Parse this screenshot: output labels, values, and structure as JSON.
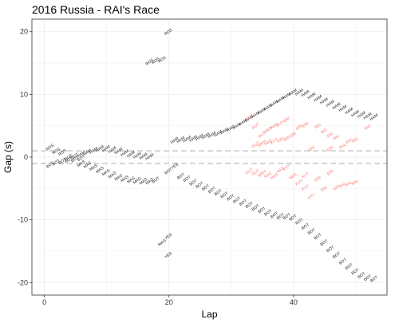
{
  "chart_data": {
    "type": "scatter",
    "title": "2016 Russia - RAI's Race",
    "xlabel": "Lap",
    "ylabel": "Gap (s)",
    "xlim": [
      -2,
      55
    ],
    "ylim": [
      -22,
      22
    ],
    "x_ticks": [
      0,
      20,
      40
    ],
    "y_ticks": [
      -20,
      -10,
      0,
      10,
      20
    ],
    "grid": true,
    "legend": "none",
    "reference_lines": [
      1,
      -1
    ],
    "colors": {
      "normal": "#222222",
      "highlight": "#f8766d",
      "refline": "#bdbdbd",
      "grid": "#ebebeb",
      "border": "#333333"
    },
    "series": [
      {
        "name": "",
        "points": [
          {
            "x": 1,
            "y": 1.4,
            "label": "ROS"
          },
          {
            "x": 2,
            "y": 0.8,
            "label": "ROS"
          },
          {
            "x": 3,
            "y": 0.6,
            "label": "ROS"
          },
          {
            "x": 1,
            "y": -1.4,
            "label": "BOT"
          },
          {
            "x": 2,
            "y": -1.0,
            "label": "BOT"
          },
          {
            "x": 3,
            "y": -0.8,
            "label": "BOT"
          },
          {
            "x": 4,
            "y": -0.6,
            "label": "BOT"
          },
          {
            "x": 5,
            "y": -0.5,
            "label": "BOT"
          },
          {
            "x": 6,
            "y": -0.3,
            "label": "BOT"
          },
          {
            "x": 4,
            "y": -0.2,
            "label": "ROS"
          },
          {
            "x": 5,
            "y": 0.0,
            "label": "BOT"
          },
          {
            "x": 6,
            "y": 0.3,
            "label": "HAM"
          },
          {
            "x": 7,
            "y": 0.6,
            "label": "HAM"
          },
          {
            "x": 8,
            "y": 0.9,
            "label": "HAM"
          },
          {
            "x": 9,
            "y": 1.2,
            "label": "HAM"
          },
          {
            "x": 10,
            "y": 1.2,
            "label": "HAM"
          },
          {
            "x": 11,
            "y": 1.0,
            "label": "HAM"
          },
          {
            "x": 12,
            "y": 0.8,
            "label": "HAM"
          },
          {
            "x": 13,
            "y": 0.5,
            "label": "HAM"
          },
          {
            "x": 14,
            "y": 0.3,
            "label": "HAM"
          },
          {
            "x": 15,
            "y": 0.1,
            "label": "HAM"
          },
          {
            "x": 16,
            "y": 0.0,
            "label": "HAM"
          },
          {
            "x": 17,
            "y": -0.1,
            "label": "HAM"
          },
          {
            "x": 6,
            "y": -1.2,
            "label": "MAS"
          },
          {
            "x": 7,
            "y": -1.4,
            "label": "MAS"
          },
          {
            "x": 8,
            "y": -1.8,
            "label": "MAS"
          },
          {
            "x": 9,
            "y": -2.2,
            "label": "MAS"
          },
          {
            "x": 10,
            "y": -2.6,
            "label": "MAS"
          },
          {
            "x": 11,
            "y": -3.0,
            "label": "MAS"
          },
          {
            "x": 12,
            "y": -3.4,
            "label": "MAS"
          },
          {
            "x": 13,
            "y": -3.6,
            "label": "MAS"
          },
          {
            "x": 14,
            "y": -3.8,
            "label": "MAS"
          },
          {
            "x": 15,
            "y": -3.9,
            "label": "MAS"
          },
          {
            "x": 16,
            "y": -4.0,
            "label": "MAS"
          },
          {
            "x": 17,
            "y": -4.0,
            "label": "MAS"
          },
          {
            "x": 18,
            "y": -3.8,
            "label": "BOT"
          },
          {
            "x": 17,
            "y": 15.0,
            "label": "ROS"
          },
          {
            "x": 18,
            "y": 15.2,
            "label": "ROS"
          },
          {
            "x": 19,
            "y": 15.4,
            "label": "ROS"
          },
          {
            "x": 20,
            "y": 19.8,
            "label": "ROS"
          },
          {
            "x": 21,
            "y": 2.5,
            "label": "HAM"
          },
          {
            "x": 22,
            "y": 2.6,
            "label": "HAM"
          },
          {
            "x": 23,
            "y": 2.7,
            "label": "HAM"
          },
          {
            "x": 24,
            "y": 2.8,
            "label": "HAM"
          },
          {
            "x": 25,
            "y": 3.0,
            "label": "HAM"
          },
          {
            "x": 26,
            "y": 3.2,
            "label": "HAM"
          },
          {
            "x": 27,
            "y": 3.4,
            "label": "HAM"
          },
          {
            "x": 28,
            "y": 3.6,
            "label": "HAM"
          },
          {
            "x": 29,
            "y": 4.0,
            "label": "HAM"
          },
          {
            "x": 30,
            "y": 4.4,
            "label": "HAM"
          },
          {
            "x": 31,
            "y": 4.8,
            "label": "HAM"
          },
          {
            "x": 32,
            "y": 5.4,
            "label": "HAM"
          },
          {
            "x": 33,
            "y": 6.0,
            "label": "HAM"
          },
          {
            "x": 34,
            "y": 6.6,
            "label": "HAM"
          },
          {
            "x": 35,
            "y": 7.2,
            "label": "HAM"
          },
          {
            "x": 36,
            "y": 7.8,
            "label": "HAM"
          },
          {
            "x": 37,
            "y": 8.4,
            "label": "HAM"
          },
          {
            "x": 38,
            "y": 9.0,
            "label": "HAM"
          },
          {
            "x": 39,
            "y": 9.6,
            "label": "HAM"
          },
          {
            "x": 40,
            "y": 10.2,
            "label": "HAM"
          },
          {
            "x": 41,
            "y": 10.2,
            "label": "HAM"
          },
          {
            "x": 42,
            "y": 10.0,
            "label": "HAM"
          },
          {
            "x": 43,
            "y": 9.6,
            "label": "HAM"
          },
          {
            "x": 44,
            "y": 9.2,
            "label": "HAM"
          },
          {
            "x": 45,
            "y": 8.8,
            "label": "HAM"
          },
          {
            "x": 46,
            "y": 8.4,
            "label": "HAM"
          },
          {
            "x": 47,
            "y": 8.0,
            "label": "HAM"
          },
          {
            "x": 48,
            "y": 7.6,
            "label": "HAM"
          },
          {
            "x": 49,
            "y": 7.2,
            "label": "HAM"
          },
          {
            "x": 50,
            "y": 6.8,
            "label": "HAM"
          },
          {
            "x": 51,
            "y": 6.6,
            "label": "HAM"
          },
          {
            "x": 52,
            "y": 6.4,
            "label": "HAM"
          },
          {
            "x": 53,
            "y": 6.2,
            "label": "HAM"
          },
          {
            "x": 21,
            "y": -1.6,
            "label": "YES"
          },
          {
            "x": 20,
            "y": -2.4,
            "label": "BOT"
          },
          {
            "x": 22,
            "y": -3.2,
            "label": "BOT"
          },
          {
            "x": 23,
            "y": -3.6,
            "label": "BOT"
          },
          {
            "x": 24,
            "y": -4.2,
            "label": "BOT"
          },
          {
            "x": 25,
            "y": -4.6,
            "label": "BOT"
          },
          {
            "x": 26,
            "y": -5.0,
            "label": "BOT"
          },
          {
            "x": 27,
            "y": -5.4,
            "label": "BOT"
          },
          {
            "x": 28,
            "y": -5.8,
            "label": "BOT"
          },
          {
            "x": 29,
            "y": -6.2,
            "label": "BOT"
          },
          {
            "x": 30,
            "y": -6.6,
            "label": "BOT"
          },
          {
            "x": 31,
            "y": -7.0,
            "label": "BOT"
          },
          {
            "x": 32,
            "y": -7.4,
            "label": "BOT"
          },
          {
            "x": 33,
            "y": -7.8,
            "label": "BOT"
          },
          {
            "x": 34,
            "y": -8.2,
            "label": "BOT"
          },
          {
            "x": 35,
            "y": -8.6,
            "label": "BOT"
          },
          {
            "x": 36,
            "y": -9.0,
            "label": "BOT"
          },
          {
            "x": 37,
            "y": -9.4,
            "label": "BOT"
          },
          {
            "x": 38,
            "y": -9.6,
            "label": "BOT"
          },
          {
            "x": 39,
            "y": -9.6,
            "label": "BOT"
          },
          {
            "x": 40,
            "y": -9.8,
            "label": "BOT"
          },
          {
            "x": 41,
            "y": -10.4,
            "label": "BOT"
          },
          {
            "x": 42,
            "y": -11.2,
            "label": "BOT"
          },
          {
            "x": 43,
            "y": -12.0,
            "label": "BOT"
          },
          {
            "x": 44,
            "y": -12.8,
            "label": "BOT"
          },
          {
            "x": 45,
            "y": -13.8,
            "label": "BOT"
          },
          {
            "x": 46,
            "y": -14.8,
            "label": "BOT"
          },
          {
            "x": 47,
            "y": -15.8,
            "label": "BOT"
          },
          {
            "x": 48,
            "y": -16.8,
            "label": "BOT"
          },
          {
            "x": 49,
            "y": -17.6,
            "label": "BOT"
          },
          {
            "x": 50,
            "y": -18.4,
            "label": "BOT"
          },
          {
            "x": 51,
            "y": -19.0,
            "label": "BOT"
          },
          {
            "x": 52,
            "y": -19.4,
            "label": "BOT"
          },
          {
            "x": 53,
            "y": -19.6,
            "label": "BOT"
          },
          {
            "x": 19,
            "y": -13.8,
            "label": "MAS"
          },
          {
            "x": 20,
            "y": -12.8,
            "label": "VES"
          },
          {
            "x": 20,
            "y": -15.8,
            "label": "YES"
          }
        ]
      },
      {
        "name": "",
        "highlight": true,
        "points": [
          {
            "x": 33,
            "y": 6.2,
            "label": "GUT"
          },
          {
            "x": 34,
            "y": 4.8,
            "label": "GUT"
          },
          {
            "x": 35,
            "y": 3.4,
            "label": "GUT"
          },
          {
            "x": 36,
            "y": 4.2,
            "label": "WEH"
          },
          {
            "x": 37,
            "y": 4.8,
            "label": "NAS"
          },
          {
            "x": 38,
            "y": 5.2,
            "label": "KVY"
          },
          {
            "x": 39,
            "y": 5.8,
            "label": "ERI"
          },
          {
            "x": 34,
            "y": 1.8,
            "label": "GUT"
          },
          {
            "x": 35,
            "y": 2.0,
            "label": "WEH"
          },
          {
            "x": 36,
            "y": 2.2,
            "label": "NAS"
          },
          {
            "x": 37,
            "y": 2.4,
            "label": "KVY"
          },
          {
            "x": 38,
            "y": 2.6,
            "label": "ERI"
          },
          {
            "x": 39,
            "y": 2.8,
            "label": "ERI"
          },
          {
            "x": 40,
            "y": 3.4,
            "label": "ERI"
          },
          {
            "x": 41,
            "y": 4.6,
            "label": "ERI"
          },
          {
            "x": 42,
            "y": 5.0,
            "label": "ERI"
          },
          {
            "x": 44,
            "y": 4.8,
            "label": "RIC"
          },
          {
            "x": 45,
            "y": 4.0,
            "label": "RIC"
          },
          {
            "x": 46,
            "y": 3.4,
            "label": "RIC"
          },
          {
            "x": 47,
            "y": 3.0,
            "label": "RIC"
          },
          {
            "x": 49,
            "y": 2.4,
            "label": "RIC"
          },
          {
            "x": 50,
            "y": 2.6,
            "label": "RIC"
          },
          {
            "x": 52,
            "y": 4.6,
            "label": "RIC"
          },
          {
            "x": 43,
            "y": 1.2,
            "label": "ERI"
          },
          {
            "x": 46,
            "y": 1.2,
            "label": "ERI"
          },
          {
            "x": 48,
            "y": 1.6,
            "label": "PAL"
          },
          {
            "x": 33,
            "y": -2.4,
            "label": "GUT"
          },
          {
            "x": 34,
            "y": -2.6,
            "label": "GUT"
          },
          {
            "x": 35,
            "y": -2.8,
            "label": "WEH"
          },
          {
            "x": 36,
            "y": -3.0,
            "label": "NAS"
          },
          {
            "x": 37,
            "y": -3.2,
            "label": "NAS"
          },
          {
            "x": 38,
            "y": -2.2,
            "label": "NAS"
          },
          {
            "x": 39,
            "y": -1.8,
            "label": "KVY"
          },
          {
            "x": 40,
            "y": -3.2,
            "label": "NAS"
          },
          {
            "x": 41,
            "y": -4.2,
            "label": "KVY"
          },
          {
            "x": 42,
            "y": -3.0,
            "label": "KVY"
          },
          {
            "x": 44,
            "y": -3.6,
            "label": "ERI"
          },
          {
            "x": 46,
            "y": -2.6,
            "label": "ERI"
          },
          {
            "x": 42,
            "y": -5.0,
            "label": "KVY"
          },
          {
            "x": 43,
            "y": -6.4,
            "label": "KVY"
          },
          {
            "x": 45,
            "y": -5.2,
            "label": "ERI"
          },
          {
            "x": 47,
            "y": -5.0,
            "label": "ERI"
          },
          {
            "x": 48,
            "y": -4.6,
            "label": "PAL"
          },
          {
            "x": 49,
            "y": -4.4,
            "label": "PAL"
          },
          {
            "x": 50,
            "y": -4.2,
            "label": "PAL"
          }
        ]
      }
    ]
  }
}
